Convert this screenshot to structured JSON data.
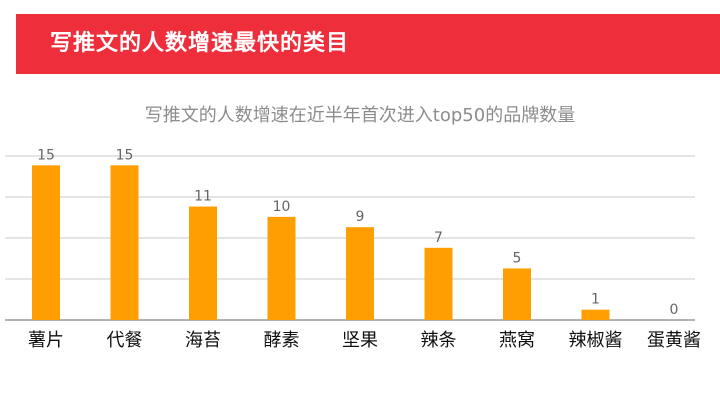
{
  "header": {
    "title": "写推文的人数增速最快的类目"
  },
  "colors": {
    "banner": "#ef2e3b",
    "bar": "#ff9e00",
    "title_text": "#8c8c8c",
    "grid": "#c8c8c8"
  },
  "chart_data": {
    "type": "bar",
    "title": "写推文的人数增速在近半年首次进入top50的品牌数量",
    "categories": [
      "薯片",
      "代餐",
      "海苔",
      "酵素",
      "坚果",
      "辣条",
      "燕窝",
      "辣椒酱",
      "蛋黄酱"
    ],
    "values": [
      15,
      15,
      11,
      10,
      9,
      7,
      5,
      1,
      0
    ],
    "xlabel": "",
    "ylabel": "",
    "ylim": [
      0,
      16
    ],
    "grid": true,
    "data_labels": true,
    "legend": "none"
  }
}
